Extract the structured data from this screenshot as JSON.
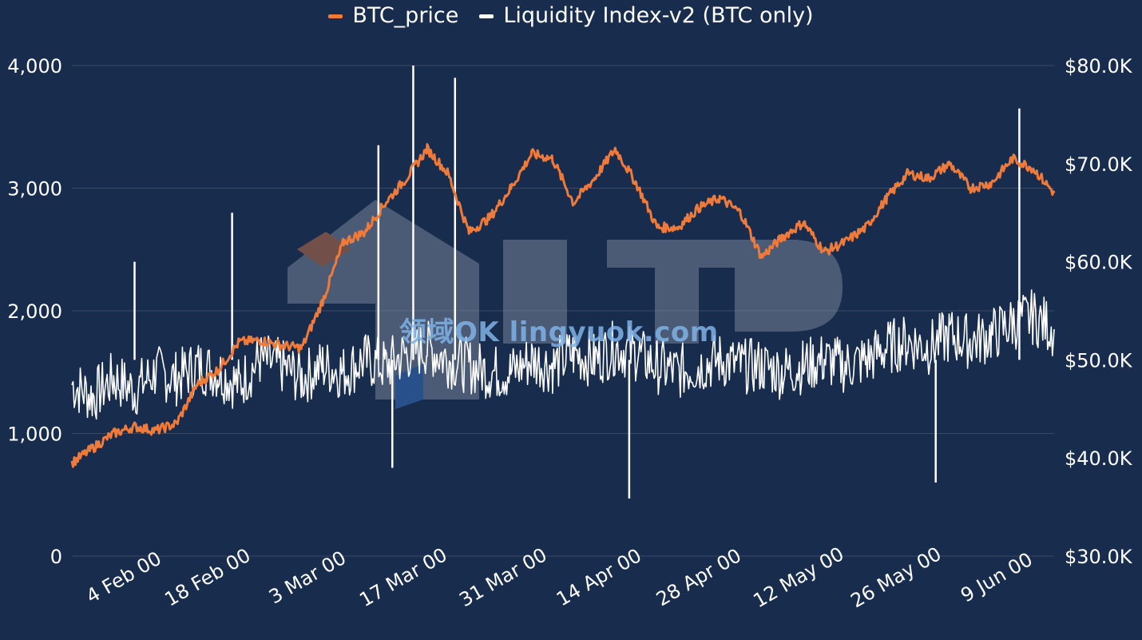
{
  "legend": [
    {
      "name": "BTC_price",
      "color": "#f07a3a"
    },
    {
      "name": "Liquidity Index-v2 (BTC only)",
      "color": "#ffffff"
    }
  ],
  "watermark": {
    "brand": "LTP",
    "text": "领域OK lingyuok.com"
  },
  "colors": {
    "background": "#182c4e",
    "gridline": "#3a4a63",
    "price_line": "#f07a3a",
    "index_line": "#ffffff"
  },
  "chart_data": {
    "type": "line",
    "x_start": "2024-01-22",
    "x_end": "2024-06-11",
    "x_tick_labels": [
      "4 Feb 00",
      "18 Feb 00",
      "3 Mar 00",
      "17 Mar 00",
      "31 Mar 00",
      "14 Apr 00",
      "28 Apr 00",
      "12 May 00",
      "26 May 00",
      "9 Jun 00"
    ],
    "y_left": {
      "range": [
        0,
        4000
      ],
      "ticks": [
        "0",
        "1,000",
        "2,000",
        "3,000",
        "4,000"
      ]
    },
    "y_right": {
      "range": [
        30000,
        80000
      ],
      "ticks": [
        "$30.0K",
        "$40.0K",
        "$50.0K",
        "$60.0K",
        "$70.0K",
        "$80.0K"
      ]
    },
    "grid": "horizontal",
    "legend_position": "top-center",
    "series": [
      {
        "name": "BTC_price",
        "axis": "right",
        "x": [
          "2024-01-22",
          "2024-01-25",
          "2024-01-28",
          "2024-01-31",
          "2024-02-03",
          "2024-02-06",
          "2024-02-09",
          "2024-02-12",
          "2024-02-15",
          "2024-02-18",
          "2024-02-21",
          "2024-02-24",
          "2024-02-27",
          "2024-03-01",
          "2024-03-04",
          "2024-03-07",
          "2024-03-10",
          "2024-03-13",
          "2024-03-16",
          "2024-03-19",
          "2024-03-22",
          "2024-03-25",
          "2024-03-28",
          "2024-03-31",
          "2024-04-03",
          "2024-04-06",
          "2024-04-09",
          "2024-04-12",
          "2024-04-15",
          "2024-04-18",
          "2024-04-21",
          "2024-04-24",
          "2024-04-27",
          "2024-04-30",
          "2024-05-03",
          "2024-05-06",
          "2024-05-09",
          "2024-05-12",
          "2024-05-15",
          "2024-05-18",
          "2024-05-21",
          "2024-05-24",
          "2024-05-27",
          "2024-05-30",
          "2024-06-02",
          "2024-06-05",
          "2024-06-08",
          "2024-06-11"
        ],
        "values": [
          39500,
          41000,
          42500,
          43200,
          42800,
          43500,
          47500,
          49000,
          51800,
          52000,
          51500,
          51200,
          56000,
          62000,
          63000,
          66000,
          68500,
          71500,
          69000,
          63000,
          64500,
          67500,
          71000,
          70500,
          66000,
          68500,
          71500,
          68000,
          63500,
          63500,
          65500,
          66500,
          65000,
          60500,
          62500,
          64000,
          61000,
          62000,
          63500,
          66500,
          69000,
          68500,
          70000,
          67500,
          68000,
          70500,
          69500,
          67000
        ]
      },
      {
        "name": "Liquidity Index-v2 (BTC only)",
        "axis": "left",
        "x": [
          "2024-01-22",
          "2024-01-25",
          "2024-01-28",
          "2024-01-31",
          "2024-02-03",
          "2024-02-06",
          "2024-02-09",
          "2024-02-12",
          "2024-02-15",
          "2024-02-18",
          "2024-02-21",
          "2024-02-24",
          "2024-02-27",
          "2024-03-01",
          "2024-03-04",
          "2024-03-07",
          "2024-03-10",
          "2024-03-13",
          "2024-03-16",
          "2024-03-19",
          "2024-03-22",
          "2024-03-25",
          "2024-03-28",
          "2024-03-31",
          "2024-04-03",
          "2024-04-06",
          "2024-04-09",
          "2024-04-12",
          "2024-04-15",
          "2024-04-18",
          "2024-04-21",
          "2024-04-24",
          "2024-04-27",
          "2024-04-30",
          "2024-05-03",
          "2024-05-06",
          "2024-05-09",
          "2024-05-12",
          "2024-05-15",
          "2024-05-18",
          "2024-05-21",
          "2024-05-24",
          "2024-05-27",
          "2024-05-30",
          "2024-06-02",
          "2024-06-05",
          "2024-06-08",
          "2024-06-11"
        ],
        "values": [
          1400,
          1300,
          1450,
          1350,
          1500,
          1450,
          1550,
          1500,
          1400,
          1600,
          1550,
          1450,
          1550,
          1500,
          1600,
          1550,
          1650,
          1700,
          1600,
          1550,
          1500,
          1500,
          1600,
          1550,
          1650,
          1600,
          1700,
          1650,
          1550,
          1500,
          1550,
          1600,
          1550,
          1550,
          1500,
          1550,
          1600,
          1550,
          1600,
          1700,
          1750,
          1700,
          1800,
          1750,
          1800,
          1900,
          1950,
          1850
        ]
      }
    ],
    "spikes": [
      {
        "x": "2024-01-31",
        "value": 2400,
        "series": "Liquidity Index-v2 (BTC only)"
      },
      {
        "x": "2024-02-14",
        "value": 2800,
        "series": "Liquidity Index-v2 (BTC only)"
      },
      {
        "x": "2024-03-06",
        "value": 3350,
        "series": "Liquidity Index-v2 (BTC only)"
      },
      {
        "x": "2024-03-08",
        "value": 720,
        "series": "Liquidity Index-v2 (BTC only)"
      },
      {
        "x": "2024-03-11",
        "value": 4000,
        "series": "Liquidity Index-v2 (BTC only)"
      },
      {
        "x": "2024-03-17",
        "value": 3900,
        "series": "Liquidity Index-v2 (BTC only)"
      },
      {
        "x": "2024-04-11",
        "value": 470,
        "series": "Liquidity Index-v2 (BTC only)"
      },
      {
        "x": "2024-05-25",
        "value": 600,
        "series": "Liquidity Index-v2 (BTC only)"
      },
      {
        "x": "2024-06-06",
        "value": 3650,
        "series": "Liquidity Index-v2 (BTC only)"
      }
    ]
  }
}
